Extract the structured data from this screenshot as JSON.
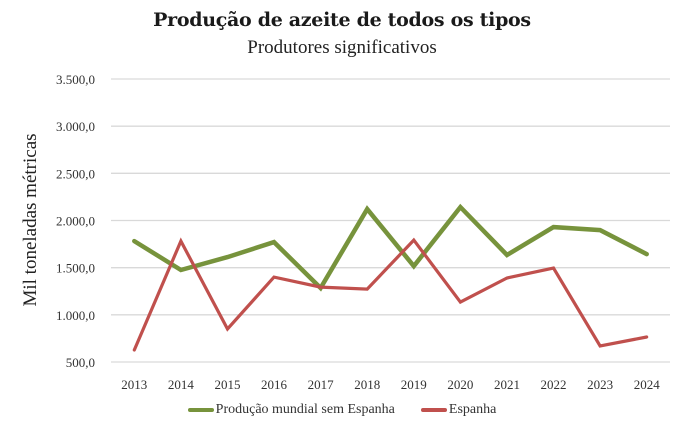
{
  "chart_data": {
    "type": "line",
    "title": "Produção de azeite de todos os tipos",
    "subtitle": "Produtores significativos",
    "xlabel": "",
    "ylabel": "Mil toneladas métricas",
    "categories": [
      "2013",
      "2014",
      "2015",
      "2016",
      "2017",
      "2018",
      "2019",
      "2020",
      "2021",
      "2022",
      "2023",
      "2024"
    ],
    "ylim": [
      500,
      3500
    ],
    "yticks": [
      500,
      1000,
      1500,
      2000,
      2500,
      3000,
      3500
    ],
    "ytick_labels": [
      "500,0",
      "1.000,0",
      "1.500,0",
      "2.000,0",
      "2.500,0",
      "3.000,0",
      "3.500,0"
    ],
    "grid": true,
    "legend_position": "bottom",
    "series": [
      {
        "name": "Produção mundial sem Espanha",
        "color": "#77933c",
        "values": [
          1782,
          1475,
          1612,
          1771,
          1284,
          2121,
          1517,
          2142,
          1634,
          1930,
          1898,
          1644
        ]
      },
      {
        "name": "Espanha",
        "color": "#c0504d",
        "values": [
          627,
          1782,
          850,
          1400,
          1294,
          1273,
          1792,
          1135,
          1390,
          1496,
          670,
          765
        ]
      }
    ]
  }
}
